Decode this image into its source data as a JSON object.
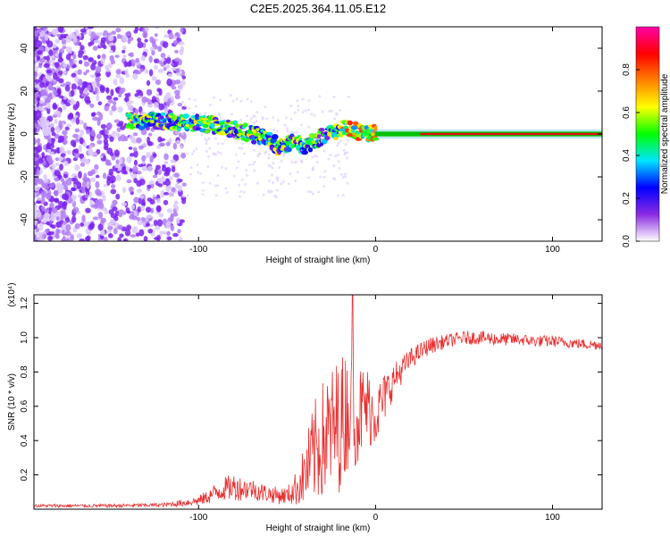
{
  "title": "C2E5.2025.364.11.05.E12",
  "chart_data": [
    {
      "type": "heatmap",
      "name": "spectrogram",
      "xlabel": "Height of straight line (km)",
      "ylabel": "Frequency (Hz)",
      "xlim": [
        -193,
        128
      ],
      "ylim": [
        -50,
        50
      ],
      "xticks": [
        -100,
        0,
        100
      ],
      "xtick_labels": [
        "-100",
        "0",
        "100"
      ],
      "yticks": [
        -40,
        -20,
        0,
        20,
        40
      ],
      "ytick_labels": [
        "-40",
        "-20",
        "0",
        "20",
        "40"
      ],
      "colorbar": {
        "label": "Normalized spectral amplitude",
        "range": [
          0,
          1
        ],
        "ticks": [
          0.0,
          0.2,
          0.4,
          0.6,
          0.8
        ],
        "tick_labels": [
          "0.0",
          "0.2",
          "0.4",
          "0.6",
          "0.8"
        ],
        "colors": [
          "#ffffff",
          "#8a2be2",
          "#0000ff",
          "#00e5ff",
          "#00ff00",
          "#ffff00",
          "#ff8000",
          "#ff0000",
          "#ff00aa"
        ]
      },
      "ridge": {
        "x": [
          -140,
          -120,
          -100,
          -90,
          -80,
          -70,
          -60,
          -55,
          -50,
          -45,
          -40,
          -35,
          -30,
          -25,
          -20,
          -15,
          -10,
          -5,
          0,
          10,
          20,
          40,
          60,
          80,
          100,
          128
        ],
        "freq": [
          6,
          6,
          5,
          4,
          2,
          0,
          -2,
          -6,
          -5,
          -4,
          -6,
          -3,
          -1,
          0,
          2,
          3,
          1,
          0,
          1,
          1,
          0,
          0,
          0,
          0,
          0,
          0
        ]
      }
    },
    {
      "type": "line",
      "name": "snr",
      "xlabel": "Height of straight line (km)",
      "ylabel": "SNR (10 * v/v)",
      "y_multiplier": "(x10⁴)",
      "xlim": [
        -193,
        128
      ],
      "ylim": [
        0,
        1.25
      ],
      "xticks": [
        -100,
        0,
        100
      ],
      "xtick_labels": [
        "-100",
        "0",
        "100"
      ],
      "yticks": [
        0.2,
        0.4,
        0.6,
        0.8,
        1.0,
        1.2
      ],
      "ytick_labels": [
        "0.2",
        "0.4",
        "0.6",
        "0.8",
        "1.0",
        "1.2"
      ],
      "color": "#e83030",
      "envelope": {
        "x": [
          -193,
          -150,
          -120,
          -110,
          -100,
          -95,
          -90,
          -85,
          -80,
          -75,
          -70,
          -65,
          -60,
          -55,
          -50,
          -45,
          -40,
          -35,
          -30,
          -25,
          -20,
          -15,
          -10,
          -5,
          0,
          5,
          10,
          20,
          30,
          40,
          50,
          60,
          70,
          80,
          90,
          100,
          110,
          120,
          128
        ],
        "mean": [
          0.02,
          0.02,
          0.025,
          0.035,
          0.05,
          0.07,
          0.1,
          0.12,
          0.13,
          0.12,
          0.12,
          0.1,
          0.09,
          0.08,
          0.08,
          0.12,
          0.2,
          0.32,
          0.4,
          0.45,
          0.5,
          0.6,
          0.55,
          0.6,
          0.55,
          0.65,
          0.75,
          0.88,
          0.95,
          0.98,
          1.0,
          1.0,
          0.99,
          0.99,
          0.98,
          0.98,
          0.97,
          0.96,
          0.96
        ],
        "spread": [
          0.01,
          0.01,
          0.012,
          0.02,
          0.03,
          0.04,
          0.06,
          0.07,
          0.08,
          0.07,
          0.06,
          0.06,
          0.05,
          0.05,
          0.05,
          0.1,
          0.18,
          0.3,
          0.35,
          0.38,
          0.4,
          0.35,
          0.3,
          0.25,
          0.18,
          0.15,
          0.1,
          0.06,
          0.05,
          0.04,
          0.04,
          0.04,
          0.04,
          0.035,
          0.035,
          0.035,
          0.03,
          0.03,
          0.03
        ]
      },
      "peak": {
        "x": -13,
        "y": 1.25
      }
    }
  ]
}
